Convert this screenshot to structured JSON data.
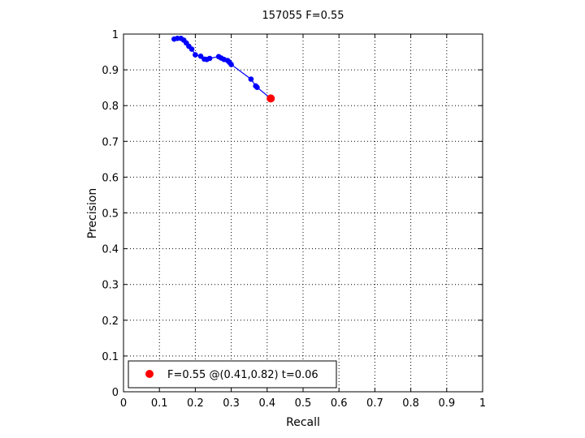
{
  "chart_data": {
    "type": "line",
    "title": "157055 F=0.55",
    "xlabel": "Recall",
    "ylabel": "Precision",
    "xlim": [
      0,
      1
    ],
    "ylim": [
      0,
      1
    ],
    "x_ticks": [
      "0",
      "0.1",
      "0.2",
      "0.3",
      "0.4",
      "0.5",
      "0.6",
      "0.7",
      "0.8",
      "0.9",
      "1"
    ],
    "y_ticks": [
      "0",
      "0.1",
      "0.2",
      "0.3",
      "0.4",
      "0.5",
      "0.6",
      "0.7",
      "0.8",
      "0.9",
      "1"
    ],
    "grid": true,
    "grid_style": "dotted",
    "series": [
      {
        "color": "#0000ff",
        "points": [
          [
            0.141,
            0.986
          ],
          [
            0.15,
            0.988
          ],
          [
            0.16,
            0.988
          ],
          [
            0.168,
            0.983
          ],
          [
            0.175,
            0.975
          ],
          [
            0.182,
            0.966
          ],
          [
            0.19,
            0.958
          ],
          [
            0.2,
            0.942
          ],
          [
            0.215,
            0.938
          ],
          [
            0.225,
            0.93
          ],
          [
            0.232,
            0.929
          ],
          [
            0.24,
            0.932
          ],
          [
            0.265,
            0.937
          ],
          [
            0.272,
            0.933
          ],
          [
            0.28,
            0.929
          ],
          [
            0.29,
            0.926
          ],
          [
            0.295,
            0.921
          ],
          [
            0.3,
            0.915
          ],
          [
            0.355,
            0.874
          ],
          [
            0.368,
            0.855
          ],
          [
            0.372,
            0.851
          ],
          [
            0.41,
            0.82
          ]
        ]
      }
    ],
    "best_point": {
      "recall": 0.41,
      "precision": 0.82,
      "color": "#ff0000"
    },
    "legend": {
      "placement": "bottom-left",
      "entries": [
        {
          "label": "F=0.55 @(0.41,0.82) t=0.06",
          "marker_color": "#ff0000"
        }
      ]
    }
  }
}
